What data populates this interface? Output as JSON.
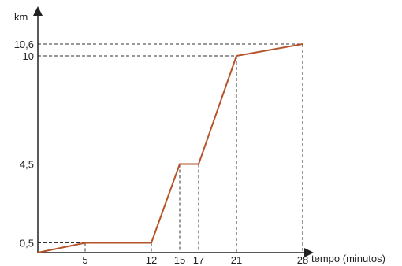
{
  "chart_data": {
    "type": "line",
    "ylabel": "km",
    "xlabel": "tempo (minutos)",
    "xlim": [
      0,
      31
    ],
    "ylim": [
      0,
      12.6
    ],
    "x_ticks": [
      "5",
      "12",
      "15",
      "17",
      "21",
      "28"
    ],
    "y_ticks": [
      "0,5",
      "4,5",
      "10",
      "10,6"
    ],
    "line_color": "#b5532a",
    "series": [
      {
        "points": [
          {
            "x": 0,
            "y": 0
          },
          {
            "x": 5,
            "y": 0.5
          },
          {
            "x": 12,
            "y": 0.5
          },
          {
            "x": 15,
            "y": 4.5
          },
          {
            "x": 17,
            "y": 4.5
          },
          {
            "x": 21,
            "y": 10
          },
          {
            "x": 28,
            "y": 10.6
          }
        ]
      }
    ]
  }
}
